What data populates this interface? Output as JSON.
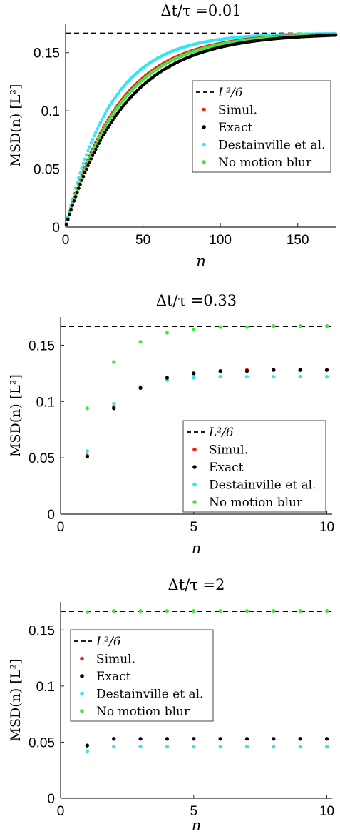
{
  "chart_data": [
    {
      "type": "scatter",
      "title": "Δt/τ =0.01",
      "xlabel": "n",
      "ylabel": "MSD(n) [L²]",
      "xlim": [
        0,
        175
      ],
      "ylim": [
        0,
        0.175
      ],
      "xticks": [
        0,
        50,
        100,
        150
      ],
      "xtick_labels": [
        "0",
        "50",
        "100",
        "150"
      ],
      "yticks": [
        0,
        0.05,
        0.1,
        0.15
      ],
      "ytick_labels": [
        "0",
        "0.05",
        "0.1",
        "0.15"
      ],
      "plateau": 0.1667,
      "legend_position": "center-right",
      "continuous": true,
      "series": [
        {
          "name": "L²/6",
          "kind": "dashed-line",
          "color": "#000000"
        },
        {
          "name": "Simul.",
          "color": "#e8201b",
          "curve": {
            "a": 0.1667,
            "b": 0.1667,
            "tau": 34
          }
        },
        {
          "name": "Exact",
          "color": "#000000",
          "curve": {
            "a": 0.1667,
            "b": 0.1667,
            "tau": 38
          }
        },
        {
          "name": "Destainville et al.",
          "color": "#33e6f5",
          "curve": {
            "a": 0.1667,
            "b": 0.1667,
            "tau": 29
          }
        },
        {
          "name": "No motion blur",
          "color": "#3ee83e",
          "curve": {
            "a": 0.1667,
            "b": 0.1667,
            "tau": 35
          }
        }
      ]
    },
    {
      "type": "scatter",
      "title": "Δt/τ =0.33",
      "xlabel": "n",
      "ylabel": "MSD(n) [L²]",
      "xlim": [
        0,
        10.2
      ],
      "ylim": [
        0,
        0.175
      ],
      "xticks": [
        0,
        5,
        10
      ],
      "xtick_labels": [
        "0",
        "5",
        "10"
      ],
      "yticks": [
        0,
        0.05,
        0.1,
        0.15
      ],
      "ytick_labels": [
        "0",
        "0.05",
        "0.1",
        "0.15"
      ],
      "plateau": 0.1667,
      "legend_position": "center-right",
      "x": [
        1,
        2,
        3,
        4,
        5,
        6,
        7,
        8,
        9,
        10
      ],
      "series": [
        {
          "name": "L²/6",
          "kind": "dashed-line",
          "color": "#000000"
        },
        {
          "name": "Simul.",
          "color": "#e8201b",
          "values": [
            0.052,
            0.095,
            0.112,
            0.121,
            0.125,
            0.127,
            0.128,
            0.128,
            0.128,
            0.128
          ]
        },
        {
          "name": "Exact",
          "color": "#000000",
          "values": [
            0.051,
            0.094,
            0.112,
            0.121,
            0.125,
            0.127,
            0.127,
            0.128,
            0.128,
            0.128
          ]
        },
        {
          "name": "Destainville et al.",
          "color": "#33e6f5",
          "values": [
            0.056,
            0.098,
            0.113,
            0.119,
            0.121,
            0.122,
            0.122,
            0.122,
            0.122,
            0.122
          ]
        },
        {
          "name": "No motion blur",
          "color": "#3ee83e",
          "values": [
            0.094,
            0.135,
            0.153,
            0.161,
            0.164,
            0.166,
            0.166,
            0.167,
            0.167,
            0.167
          ]
        }
      ]
    },
    {
      "type": "scatter",
      "title": "Δt/τ =2",
      "xlabel": "n",
      "ylabel": "MSD(n) [L²]",
      "xlim": [
        0,
        10.2
      ],
      "ylim": [
        0,
        0.175
      ],
      "xticks": [
        0,
        5,
        10
      ],
      "xtick_labels": [
        "0",
        "5",
        "10"
      ],
      "yticks": [
        0,
        0.05,
        0.1,
        0.15
      ],
      "ytick_labels": [
        "0",
        "0.05",
        "0.1",
        "0.15"
      ],
      "plateau": 0.1667,
      "legend_position": "top-left",
      "x": [
        1,
        2,
        3,
        4,
        5,
        6,
        7,
        8,
        9,
        10
      ],
      "series": [
        {
          "name": "L²/6",
          "kind": "dashed-line",
          "color": "#000000"
        },
        {
          "name": "Simul.",
          "color": "#e8201b",
          "values": [
            0.047,
            0.053,
            0.053,
            0.053,
            0.053,
            0.053,
            0.053,
            0.053,
            0.053,
            0.053
          ]
        },
        {
          "name": "Exact",
          "color": "#000000",
          "values": [
            0.047,
            0.053,
            0.053,
            0.053,
            0.053,
            0.053,
            0.053,
            0.053,
            0.053,
            0.053
          ]
        },
        {
          "name": "Destainville et al.",
          "color": "#33e6f5",
          "values": [
            0.042,
            0.046,
            0.046,
            0.046,
            0.046,
            0.046,
            0.046,
            0.046,
            0.046,
            0.046
          ]
        },
        {
          "name": "No motion blur",
          "color": "#3ee83e",
          "values": [
            0.166,
            0.167,
            0.167,
            0.167,
            0.167,
            0.167,
            0.167,
            0.167,
            0.167,
            0.167
          ]
        }
      ]
    }
  ]
}
